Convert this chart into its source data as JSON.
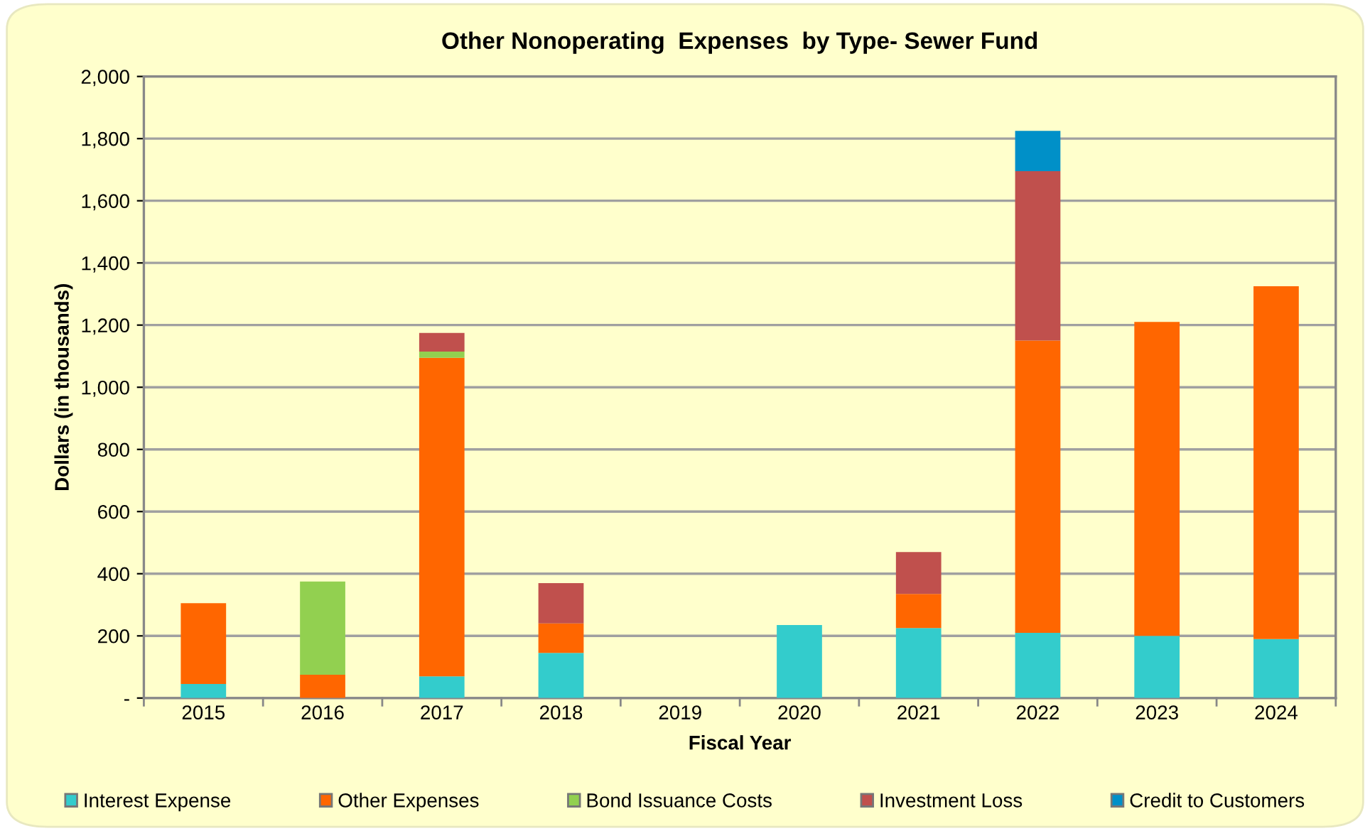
{
  "chart_data": {
    "type": "bar",
    "stacked": true,
    "title": "Other Nonoperating  Expenses  by Type- Sewer Fund",
    "xlabel": "Fiscal Year",
    "ylabel": "Dollars (in thousands)",
    "categories": [
      "2015",
      "2016",
      "2017",
      "2018",
      "2019",
      "2020",
      "2021",
      "2022",
      "2023",
      "2024"
    ],
    "series": [
      {
        "name": "Interest Expense",
        "color": "#33cccc",
        "values": [
          45,
          null,
          70,
          145,
          null,
          235,
          225,
          210,
          200,
          190
        ]
      },
      {
        "name": "Other Expenses",
        "color": "#ff6600",
        "values": [
          260,
          75,
          1025,
          95,
          null,
          null,
          110,
          940,
          1010,
          1135
        ]
      },
      {
        "name": "Bond Issuance Costs",
        "color": "#92d050",
        "values": [
          null,
          300,
          20,
          null,
          null,
          null,
          null,
          null,
          null,
          null
        ]
      },
      {
        "name": "Investment Loss",
        "color": "#c0504d",
        "values": [
          null,
          null,
          60,
          130,
          null,
          null,
          135,
          545,
          null,
          null
        ]
      },
      {
        "name": "Credit to Customers",
        "color": "#0090c8",
        "values": [
          null,
          null,
          null,
          null,
          null,
          null,
          null,
          130,
          null,
          null
        ]
      }
    ],
    "ylim": [
      0,
      2000
    ],
    "yticks": [
      {
        "value": 0,
        "label": "-"
      },
      {
        "value": 200,
        "label": "200"
      },
      {
        "value": 400,
        "label": "400"
      },
      {
        "value": 600,
        "label": "600"
      },
      {
        "value": 800,
        "label": "800"
      },
      {
        "value": 1000,
        "label": "1,000"
      },
      {
        "value": 1200,
        "label": "1,200"
      },
      {
        "value": 1400,
        "label": "1,400"
      },
      {
        "value": 1600,
        "label": "1,600"
      },
      {
        "value": 1800,
        "label": "1,800"
      },
      {
        "value": 2000,
        "label": "2,000"
      }
    ],
    "grid": "y",
    "legend": "bottom"
  }
}
